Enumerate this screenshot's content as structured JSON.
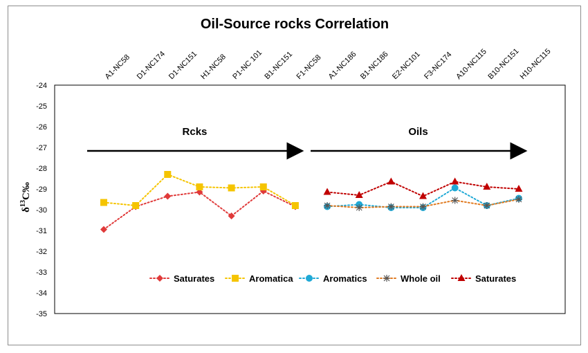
{
  "chart_data": {
    "type": "line",
    "title": "Oil-Source rocks Correlation",
    "ylabel": {
      "prefix": "δ",
      "sup": "13",
      "suffix": "C‰"
    },
    "ylim": [
      -35,
      -24
    ],
    "yticks": [
      -24,
      -25,
      -26,
      -27,
      -28,
      -29,
      -30,
      -31,
      -32,
      -33,
      -34,
      -35
    ],
    "grid": false,
    "legend_position": "bottom",
    "categories": [
      "A1-NC58",
      "D1-NC174",
      "D1-NC151",
      "H1-NC58",
      "P1-NC 101",
      "B1-NC151",
      "F1-NC58",
      "A1-NC186",
      "B1-NC186",
      "E2-NC101",
      "F3-NC174",
      "A10-NC115",
      "B10-NC151",
      "H10-NC115"
    ],
    "series": [
      {
        "name": "Saturates",
        "color": "#e03a3a",
        "marker": "diamond",
        "values": [
          -30.95,
          -29.85,
          -29.35,
          -29.15,
          -30.3,
          -29.1,
          -29.85,
          null,
          null,
          null,
          null,
          null,
          null,
          null
        ]
      },
      {
        "name": "Aromatica",
        "color": "#f5c400",
        "marker": "square",
        "values": [
          -29.65,
          -29.8,
          -28.3,
          -28.9,
          -28.95,
          -28.9,
          -29.8,
          null,
          null,
          null,
          null,
          null,
          null,
          null
        ]
      },
      {
        "name": "Aromatics",
        "color": "#1fa9d6",
        "marker": "circle",
        "values": [
          null,
          null,
          null,
          null,
          null,
          null,
          null,
          -29.85,
          -29.75,
          -29.9,
          -29.9,
          -28.95,
          -29.8,
          -29.45
        ]
      },
      {
        "name": "Whole oil",
        "color": "#e07a20",
        "marker": "star",
        "values": [
          null,
          null,
          null,
          null,
          null,
          null,
          null,
          -29.8,
          -29.9,
          -29.85,
          -29.85,
          -29.55,
          -29.8,
          -29.5
        ]
      },
      {
        "name": "Saturates",
        "color": "#c00000",
        "marker": "triangle",
        "values": [
          null,
          null,
          null,
          null,
          null,
          null,
          null,
          -29.15,
          -29.3,
          -28.65,
          -29.35,
          -28.65,
          -28.9,
          -29.0
        ]
      }
    ],
    "annotations": [
      {
        "text": "Rcks",
        "arrow_from_category": 0,
        "arrow_to_category": 6,
        "y_level": -27.1
      },
      {
        "text": "Oils",
        "arrow_from_category": 7,
        "arrow_to_category": 13,
        "y_level": -27.1
      }
    ]
  }
}
